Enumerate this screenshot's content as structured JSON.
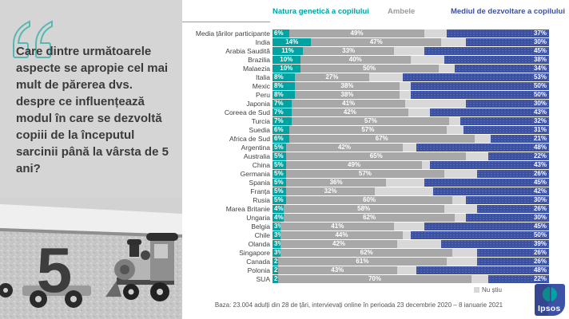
{
  "question": {
    "text": "Care dintre următoarele aspecte se apropie cel mai mult de părerea dvs. despre ce influențează modul în care se dezvoltă copiii de la începutul sarcinii până la vârsta de 5 ani?"
  },
  "chart_data": {
    "type": "bar",
    "stacked": true,
    "orientation": "horizontal",
    "unit": "%",
    "legend_position": "top",
    "axis_range": [
      0,
      100
    ],
    "grid": false,
    "dont_know_label": "Nu știu",
    "categories": [
      "Media țărilor participante",
      "India",
      "Arabia Saudită",
      "Brazilia",
      "Malaezia",
      "Italia",
      "Mexic",
      "Peru",
      "Japonia",
      "Coreea de Sud",
      "Turcia",
      "Suedia",
      "Africa de Sud",
      "Argentina",
      "Australia",
      "China",
      "Germania",
      "Spania",
      "Franța",
      "Rusia",
      "Marea Britanie",
      "Ungaria",
      "Belgia",
      "Chile",
      "Olanda",
      "Singapore",
      "Canada",
      "Polonia",
      "SUA"
    ],
    "series": [
      {
        "name": "Natura genetică a copilului",
        "color": "#00a2a2",
        "values": [
          6,
          14,
          11,
          10,
          10,
          8,
          8,
          8,
          7,
          7,
          7,
          6,
          6,
          5,
          5,
          5,
          5,
          5,
          5,
          5,
          4,
          4,
          3,
          3,
          3,
          3,
          2,
          2,
          2
        ]
      },
      {
        "name": "Ambele",
        "color": "#a8a8a8",
        "values": [
          49,
          47,
          33,
          40,
          50,
          27,
          38,
          38,
          41,
          42,
          57,
          57,
          67,
          42,
          65,
          49,
          57,
          36,
          32,
          60,
          58,
          62,
          41,
          44,
          42,
          62,
          61,
          43,
          70
        ]
      },
      {
        "name": "Nu știu",
        "color": "#d8d8d8",
        "labels_shown": false,
        "values": [
          8,
          9,
          11,
          12,
          6,
          12,
          4,
          4,
          22,
          8,
          4,
          6,
          6,
          5,
          8,
          3,
          12,
          14,
          21,
          5,
          12,
          4,
          11,
          3,
          16,
          9,
          11,
          7,
          6
        ]
      },
      {
        "name": "Mediul de dezvoltare a copilului",
        "color": "#3c51a2",
        "values": [
          37,
          30,
          45,
          38,
          34,
          53,
          50,
          50,
          30,
          43,
          32,
          31,
          21,
          48,
          22,
          43,
          26,
          45,
          42,
          30,
          26,
          30,
          45,
          50,
          39,
          26,
          26,
          48,
          22
        ]
      }
    ]
  },
  "footer": {
    "base_note": "Baza: 23.004 adulți din 28 de țări, intervievați online în perioada 23 decembrie 2020 – 8 ianuarie 2021",
    "logo_text": "Ipsos"
  }
}
